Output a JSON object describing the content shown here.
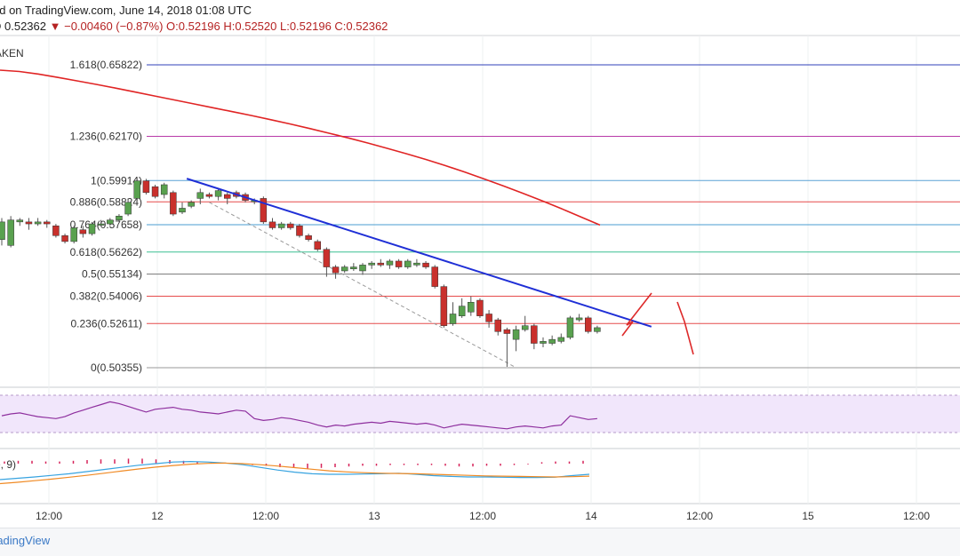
{
  "header": {
    "title": "ed on TradingView.com, June 14, 2018 01:08 UTC",
    "price_line": {
      "last": "D 0.52362",
      "change": "▼ −0.00460 (−0.87%)",
      "ohlc": "O:0.52196 H:0.52520 L:0.52196 C:0.52362"
    },
    "exchange": "AKEN"
  },
  "footer": {
    "brand": "radingView"
  },
  "macd_label": "e, 9)",
  "colors": {
    "bull": "#59a14f",
    "bear": "#c9302c",
    "trend": "#1f2fd6",
    "ma": "#e02424",
    "rsi": "#8e2f9e",
    "rsi_band": "#f1e6fb",
    "macd": "#37a3e0",
    "signal": "#f08a24",
    "hist": "#d6245a",
    "drawing": "#dd2a2a"
  },
  "chart_data": {
    "type": "candlestick",
    "x_ticks": [
      "12:00",
      "12",
      "12:00",
      "13",
      "12:00",
      "14",
      "12:00",
      "15",
      "12:00"
    ],
    "fib_levels": [
      {
        "label": "1.618(0.65822)",
        "value": 0.65822,
        "color": "#3140b8"
      },
      {
        "label": "1.236(0.62170)",
        "value": 0.6217,
        "color": "#b83aa9"
      },
      {
        "label": "1(0.59914)",
        "value": 0.59914,
        "color": "#5aa2d6"
      },
      {
        "label": "0.886(0.58824)",
        "value": 0.58824,
        "color": "#e64b4b"
      },
      {
        "label": "0.764(0.57658)",
        "value": 0.57658,
        "color": "#4a9ed0"
      },
      {
        "label": "0.618(0.56262)",
        "value": 0.56262,
        "color": "#3cbf92"
      },
      {
        "label": "0.5(0.55134)",
        "value": 0.55134,
        "color": "#777777"
      },
      {
        "label": "0.382(0.54006)",
        "value": 0.54006,
        "color": "#e64b4b"
      },
      {
        "label": "0.236(0.52611)",
        "value": 0.52611,
        "color": "#e64b4b"
      },
      {
        "label": "0(0.50355)",
        "value": 0.50355,
        "color": "#999999"
      }
    ],
    "candles": [
      {
        "o": 0.569,
        "c": 0.578,
        "h": 0.58,
        "l": 0.566
      },
      {
        "o": 0.566,
        "c": 0.579,
        "h": 0.581,
        "l": 0.565
      },
      {
        "o": 0.578,
        "c": 0.579,
        "h": 0.58,
        "l": 0.576
      },
      {
        "o": 0.578,
        "c": 0.577,
        "h": 0.58,
        "l": 0.574
      },
      {
        "o": 0.577,
        "c": 0.578,
        "h": 0.58,
        "l": 0.576
      },
      {
        "o": 0.578,
        "c": 0.577,
        "h": 0.579,
        "l": 0.575
      },
      {
        "o": 0.576,
        "c": 0.571,
        "h": 0.577,
        "l": 0.57
      },
      {
        "o": 0.571,
        "c": 0.568,
        "h": 0.572,
        "l": 0.567
      },
      {
        "o": 0.568,
        "c": 0.575,
        "h": 0.576,
        "l": 0.567
      },
      {
        "o": 0.574,
        "c": 0.572,
        "h": 0.576,
        "l": 0.57
      },
      {
        "o": 0.572,
        "c": 0.577,
        "h": 0.578,
        "l": 0.571
      },
      {
        "o": 0.577,
        "c": 0.577,
        "h": 0.579,
        "l": 0.576
      },
      {
        "o": 0.577,
        "c": 0.579,
        "h": 0.58,
        "l": 0.576
      },
      {
        "o": 0.579,
        "c": 0.581,
        "h": 0.582,
        "l": 0.578
      },
      {
        "o": 0.582,
        "c": 0.588,
        "h": 0.59,
        "l": 0.581
      },
      {
        "o": 0.59,
        "c": 0.599,
        "h": 0.6,
        "l": 0.589
      },
      {
        "o": 0.599,
        "c": 0.593,
        "h": 0.6,
        "l": 0.592
      },
      {
        "o": 0.596,
        "c": 0.591,
        "h": 0.597,
        "l": 0.59
      },
      {
        "o": 0.592,
        "c": 0.597,
        "h": 0.598,
        "l": 0.59
      },
      {
        "o": 0.593,
        "c": 0.582,
        "h": 0.594,
        "l": 0.581
      },
      {
        "o": 0.583,
        "c": 0.585,
        "h": 0.588,
        "l": 0.582
      },
      {
        "o": 0.586,
        "c": 0.588,
        "h": 0.589,
        "l": 0.585
      },
      {
        "o": 0.59,
        "c": 0.593,
        "h": 0.595,
        "l": 0.587
      },
      {
        "o": 0.592,
        "c": 0.591,
        "h": 0.593,
        "l": 0.59
      },
      {
        "o": 0.591,
        "c": 0.594,
        "h": 0.595,
        "l": 0.589
      },
      {
        "o": 0.592,
        "c": 0.59,
        "h": 0.593,
        "l": 0.587
      },
      {
        "o": 0.593,
        "c": 0.591,
        "h": 0.594,
        "l": 0.59
      },
      {
        "o": 0.592,
        "c": 0.589,
        "h": 0.593,
        "l": 0.588
      },
      {
        "o": 0.589,
        "c": 0.589,
        "h": 0.59,
        "l": 0.587
      },
      {
        "o": 0.59,
        "c": 0.578,
        "h": 0.591,
        "l": 0.577
      },
      {
        "o": 0.578,
        "c": 0.575,
        "h": 0.58,
        "l": 0.574
      },
      {
        "o": 0.575,
        "c": 0.577,
        "h": 0.578,
        "l": 0.574
      },
      {
        "o": 0.577,
        "c": 0.575,
        "h": 0.578,
        "l": 0.574
      },
      {
        "o": 0.576,
        "c": 0.571,
        "h": 0.577,
        "l": 0.57
      },
      {
        "o": 0.571,
        "c": 0.569,
        "h": 0.572,
        "l": 0.568
      },
      {
        "o": 0.568,
        "c": 0.564,
        "h": 0.569,
        "l": 0.563
      },
      {
        "o": 0.564,
        "c": 0.555,
        "h": 0.565,
        "l": 0.55
      },
      {
        "o": 0.555,
        "c": 0.552,
        "h": 0.556,
        "l": 0.549
      },
      {
        "o": 0.553,
        "c": 0.555,
        "h": 0.556,
        "l": 0.552
      },
      {
        "o": 0.554,
        "c": 0.555,
        "h": 0.557,
        "l": 0.553
      },
      {
        "o": 0.553,
        "c": 0.556,
        "h": 0.557,
        "l": 0.551
      },
      {
        "o": 0.556,
        "c": 0.557,
        "h": 0.558,
        "l": 0.554
      },
      {
        "o": 0.557,
        "c": 0.556,
        "h": 0.559,
        "l": 0.555
      },
      {
        "o": 0.556,
        "c": 0.558,
        "h": 0.559,
        "l": 0.554
      },
      {
        "o": 0.558,
        "c": 0.555,
        "h": 0.559,
        "l": 0.554
      },
      {
        "o": 0.555,
        "c": 0.558,
        "h": 0.559,
        "l": 0.554
      },
      {
        "o": 0.556,
        "c": 0.557,
        "h": 0.559,
        "l": 0.555
      },
      {
        "o": 0.557,
        "c": 0.555,
        "h": 0.558,
        "l": 0.554
      },
      {
        "o": 0.555,
        "c": 0.545,
        "h": 0.556,
        "l": 0.544
      },
      {
        "o": 0.545,
        "c": 0.525,
        "h": 0.546,
        "l": 0.524
      },
      {
        "o": 0.526,
        "c": 0.531,
        "h": 0.537,
        "l": 0.525
      },
      {
        "o": 0.53,
        "c": 0.535,
        "h": 0.539,
        "l": 0.529
      },
      {
        "o": 0.532,
        "c": 0.537,
        "h": 0.54,
        "l": 0.53
      },
      {
        "o": 0.538,
        "c": 0.53,
        "h": 0.539,
        "l": 0.529
      },
      {
        "o": 0.531,
        "c": 0.527,
        "h": 0.533,
        "l": 0.524
      },
      {
        "o": 0.528,
        "c": 0.522,
        "h": 0.529,
        "l": 0.52
      },
      {
        "o": 0.523,
        "c": 0.521,
        "h": 0.524,
        "l": 0.504
      },
      {
        "o": 0.518,
        "c": 0.523,
        "h": 0.525,
        "l": 0.512
      },
      {
        "o": 0.523,
        "c": 0.525,
        "h": 0.53,
        "l": 0.522
      },
      {
        "o": 0.525,
        "c": 0.516,
        "h": 0.526,
        "l": 0.513
      },
      {
        "o": 0.516,
        "c": 0.517,
        "h": 0.519,
        "l": 0.514
      },
      {
        "o": 0.516,
        "c": 0.518,
        "h": 0.52,
        "l": 0.515
      },
      {
        "o": 0.517,
        "c": 0.519,
        "h": 0.521,
        "l": 0.516
      },
      {
        "o": 0.519,
        "c": 0.529,
        "h": 0.53,
        "l": 0.518
      },
      {
        "o": 0.528,
        "c": 0.529,
        "h": 0.531,
        "l": 0.527
      },
      {
        "o": 0.529,
        "c": 0.522,
        "h": 0.53,
        "l": 0.521
      },
      {
        "o": 0.522,
        "c": 0.524,
        "h": 0.525,
        "l": 0.521
      }
    ],
    "ma_200": [
      0.6555,
      0.6548,
      0.6535,
      0.6518,
      0.65,
      0.6482,
      0.6463,
      0.6443,
      0.6423,
      0.6403,
      0.6383,
      0.6363,
      0.6343,
      0.6323,
      0.6302,
      0.628,
      0.6257,
      0.6233,
      0.6209,
      0.6183,
      0.6156,
      0.6128,
      0.6099,
      0.6068,
      0.6035,
      0.6,
      0.5964,
      0.5927,
      0.5888,
      0.5848,
      0.5806,
      0.5764
    ],
    "trendline": {
      "from": {
        "i": 21,
        "v": 0.6001
      },
      "to": {
        "i": 72,
        "v": 0.5245
      }
    },
    "dashed_line": {
      "from": {
        "i": 23,
        "v": 0.588
      },
      "to": {
        "i": 57,
        "v": 0.5036
      }
    },
    "rsi": [
      48,
      50,
      51,
      49,
      47,
      46,
      45,
      47,
      51,
      54,
      57,
      60,
      63,
      61,
      58,
      55,
      52,
      55,
      56,
      57,
      55,
      54,
      52,
      51,
      50,
      52,
      54,
      53,
      45,
      43,
      44,
      46,
      45,
      43,
      41,
      38,
      36,
      38,
      37,
      39,
      40,
      41,
      40,
      42,
      41,
      40,
      39,
      40,
      38,
      35,
      37,
      39,
      38,
      37,
      36,
      35,
      34,
      36,
      37,
      36,
      35,
      37,
      38,
      48,
      46,
      44,
      45
    ],
    "macd_hist": [
      0.3,
      0.4,
      0.4,
      0.3,
      0.3,
      0.4,
      0.5,
      0.6,
      0.6,
      0.7,
      0.7,
      0.6,
      0.5,
      0.4,
      0.3,
      0.2,
      0.0,
      -0.1,
      -0.2,
      -0.3,
      -0.5,
      -0.6,
      -0.7,
      -0.6,
      -0.5,
      -0.4,
      -0.3,
      -0.3,
      -0.2,
      -0.2,
      -0.2,
      -0.2,
      -0.3,
      -0.4,
      -0.4,
      -0.3,
      -0.3,
      -0.2,
      -0.1,
      0.2,
      0.3,
      0.3,
      0.4
    ],
    "macd_line": [
      0.2,
      0.25,
      0.3,
      0.36,
      0.42,
      0.5,
      0.58,
      0.66,
      0.74,
      0.8,
      0.86,
      0.88,
      0.86,
      0.82,
      0.76,
      0.66,
      0.56,
      0.48,
      0.42,
      0.4,
      0.4,
      0.41,
      0.42,
      0.44,
      0.4,
      0.35,
      0.32,
      0.3,
      0.3,
      0.29,
      0.28,
      0.28,
      0.29,
      0.35,
      0.4
    ],
    "signal_line": [
      0.05,
      0.1,
      0.16,
      0.22,
      0.29,
      0.36,
      0.44,
      0.52,
      0.6,
      0.67,
      0.73,
      0.78,
      0.81,
      0.82,
      0.8,
      0.76,
      0.71,
      0.65,
      0.59,
      0.53,
      0.49,
      0.46,
      0.44,
      0.43,
      0.42,
      0.4,
      0.38,
      0.36,
      0.34,
      0.33,
      0.32,
      0.31,
      0.3,
      0.31,
      0.33
    ]
  }
}
